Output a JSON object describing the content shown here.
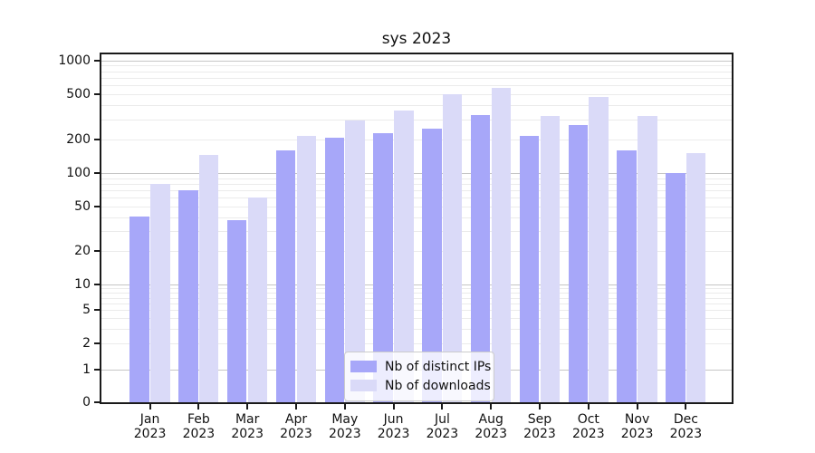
{
  "chart_data": {
    "type": "bar",
    "title": "sys 2023",
    "categories": [
      "Jan",
      "Feb",
      "Mar",
      "Apr",
      "May",
      "Jun",
      "Jul",
      "Aug",
      "Sep",
      "Oct",
      "Nov",
      "Dec"
    ],
    "x_year": "2023",
    "series": [
      {
        "name": "Nb of distinct IPs",
        "color": "#a7a7f9",
        "values": [
          41,
          70,
          38,
          160,
          205,
          225,
          250,
          330,
          215,
          265,
          160,
          100
        ]
      },
      {
        "name": "Nb of downloads",
        "color": "#dadaf8",
        "values": [
          80,
          145,
          60,
          215,
          295,
          360,
          500,
          570,
          320,
          470,
          320,
          150
        ]
      }
    ],
    "y_ticks": [
      0,
      1,
      2,
      5,
      10,
      20,
      50,
      100,
      200,
      500,
      1000
    ],
    "y_scale": "symlog",
    "ylim": [
      0,
      1000
    ],
    "grid": "horizontal major and minor log gridlines",
    "legend_position": "lower center inside axes",
    "axis_color": "#1a1a1a"
  }
}
